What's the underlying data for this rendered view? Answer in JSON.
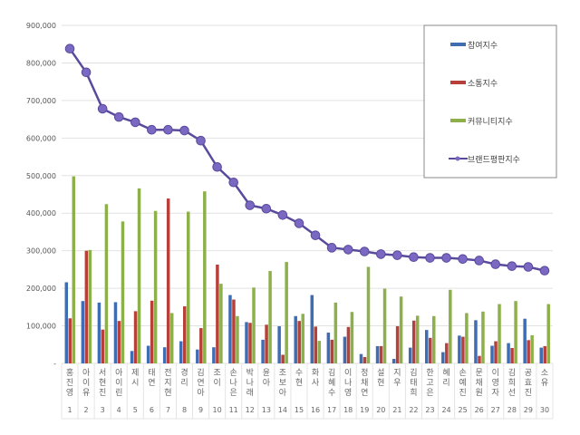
{
  "chart_data": {
    "type": "bar+line",
    "categories": [
      "홍진영",
      "아이유",
      "서현진",
      "아이린",
      "제시",
      "태연",
      "전지현",
      "경리",
      "김연아",
      "조이",
      "손나은",
      "박나래",
      "윤아",
      "조보아",
      "수현",
      "화사",
      "김혜수",
      "이나영",
      "정채연",
      "설현",
      "지우",
      "김태희",
      "한고은",
      "혜리",
      "손예진",
      "문채원",
      "이영자",
      "김희선",
      "공효진",
      "소유"
    ],
    "ranks": [
      "1",
      "2",
      "3",
      "4",
      "5",
      "6",
      "7",
      "8",
      "9",
      "10",
      "11",
      "12",
      "13",
      "14",
      "15",
      "16",
      "17",
      "18",
      "19",
      "20",
      "21",
      "22",
      "23",
      "24",
      "25",
      "26",
      "27",
      "28",
      "29",
      "30"
    ],
    "ylim": [
      0,
      900000
    ],
    "yticks": [
      0,
      100000,
      200000,
      300000,
      400000,
      500000,
      600000,
      700000,
      800000,
      900000
    ],
    "ytick_labels": [
      "-",
      "100,000",
      "200,000",
      "300,000",
      "400,000",
      "500,000",
      "600,000",
      "700,000",
      "800,000",
      "900,000"
    ],
    "grid": true,
    "legend_position": "top-right",
    "series": [
      {
        "name": "참여지수",
        "type": "bar",
        "color": "#3f6db3",
        "values": [
          216000,
          166000,
          162000,
          163000,
          33000,
          47000,
          43000,
          59000,
          37000,
          43000,
          182000,
          110000,
          63000,
          99000,
          126000,
          182000,
          82000,
          71000,
          25000,
          46000,
          12000,
          42000,
          89000,
          30000,
          74000,
          115000,
          47000,
          54000,
          119000,
          42000
        ]
      },
      {
        "name": "소통지수",
        "type": "bar",
        "color": "#b8403a",
        "values": [
          120000,
          300000,
          90000,
          113000,
          139000,
          167000,
          439000,
          152000,
          94000,
          263000,
          170000,
          108000,
          103000,
          23000,
          113000,
          98000,
          63000,
          97000,
          17000,
          46000,
          99000,
          114000,
          68000,
          54000,
          71000,
          20000,
          59000,
          41000,
          62000,
          46000
        ]
      },
      {
        "name": "커뮤니티지수",
        "type": "bar",
        "color": "#8db04a",
        "values": [
          498000,
          302000,
          424000,
          378000,
          466000,
          406000,
          134000,
          404000,
          458000,
          212000,
          126000,
          202000,
          246000,
          270000,
          132000,
          60000,
          162000,
          137000,
          257000,
          199000,
          178000,
          127000,
          126000,
          196000,
          134000,
          138000,
          158000,
          166000,
          75000,
          158000
        ]
      },
      {
        "name": "브랜드평판지수",
        "type": "line",
        "color": "#5a4a9c",
        "values": [
          838000,
          775000,
          678000,
          656000,
          642000,
          622000,
          622000,
          620000,
          593000,
          523000,
          482000,
          421000,
          412000,
          395000,
          373000,
          341000,
          308000,
          303000,
          298000,
          291000,
          288000,
          283000,
          281000,
          281000,
          278000,
          274000,
          264000,
          259000,
          257000,
          247000
        ]
      }
    ]
  }
}
